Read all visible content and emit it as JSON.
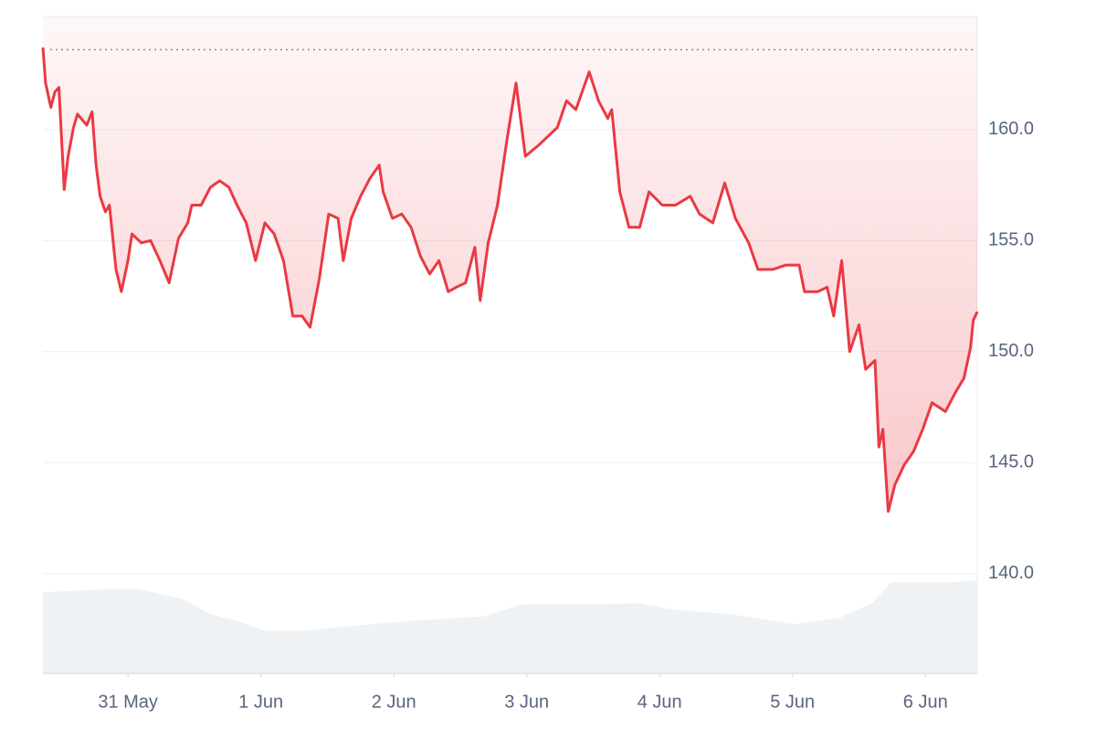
{
  "chart_data": {
    "type": "line",
    "x": [
      30.36,
      30.38,
      30.42,
      30.45,
      30.48,
      30.52,
      30.55,
      30.59,
      30.62,
      30.69,
      30.73,
      30.76,
      30.79,
      30.83,
      30.86,
      30.91,
      30.95,
      31.0,
      31.03,
      31.1,
      31.17,
      31.24,
      31.31,
      31.38,
      31.45,
      31.48,
      31.55,
      31.62,
      31.69,
      31.76,
      31.82,
      31.89,
      31.96,
      32.03,
      32.1,
      32.17,
      32.24,
      32.31,
      32.37,
      32.44,
      32.51,
      32.58,
      32.62,
      32.68,
      32.75,
      32.82,
      32.89,
      32.92,
      32.99,
      33.06,
      33.13,
      33.2,
      33.27,
      33.34,
      33.41,
      33.47,
      33.54,
      33.61,
      33.65,
      33.71,
      33.78,
      33.85,
      33.92,
      33.99,
      34.09,
      34.16,
      34.23,
      34.3,
      34.37,
      34.47,
      34.54,
      34.61,
      34.64,
      34.7,
      34.77,
      34.85,
      34.92,
      35.02,
      35.12,
      35.23,
      35.3,
      35.4,
      35.49,
      35.57,
      35.67,
      35.74,
      35.85,
      35.95,
      36.05,
      36.09,
      36.19,
      36.26,
      36.31,
      36.37,
      36.43,
      36.5,
      36.55,
      36.62,
      36.65,
      36.68,
      36.72,
      36.77,
      36.84,
      36.91,
      36.98,
      37.05,
      37.15,
      37.22,
      37.29,
      37.34,
      37.36,
      37.39
    ],
    "series": [
      {
        "color": "#ea3943",
        "values": [
          163.7,
          162.1,
          161.0,
          161.7,
          161.9,
          157.3,
          158.8,
          160.1,
          160.7,
          160.2,
          160.8,
          158.4,
          157.0,
          156.3,
          156.6,
          153.7,
          152.7,
          154.1,
          155.3,
          154.9,
          155.0,
          154.1,
          153.1,
          155.1,
          155.8,
          156.6,
          156.6,
          157.4,
          157.7,
          157.4,
          156.6,
          155.8,
          154.1,
          155.8,
          155.3,
          154.1,
          151.6,
          151.6,
          151.1,
          153.3,
          156.2,
          156.0,
          154.1,
          156.0,
          157.0,
          157.8,
          158.4,
          157.2,
          156.0,
          156.2,
          155.6,
          154.3,
          153.5,
          154.1,
          152.7,
          152.9,
          153.1,
          154.7,
          152.3,
          154.9,
          156.6,
          159.5,
          162.1,
          158.8,
          159.3,
          159.7,
          160.1,
          161.3,
          160.9,
          162.6,
          161.3,
          160.5,
          160.9,
          157.2,
          155.6,
          155.6,
          157.2,
          156.6,
          156.6,
          157.0,
          156.2,
          155.8,
          157.6,
          156.0,
          154.9,
          153.7,
          153.7,
          153.9,
          153.9,
          152.7,
          152.7,
          152.9,
          151.6,
          154.1,
          150.0,
          151.2,
          149.2,
          149.6,
          145.7,
          146.5,
          142.8,
          144.0,
          144.9,
          145.5,
          146.5,
          147.7,
          147.3,
          148.1,
          148.8,
          150.2,
          151.4,
          151.8
        ]
      }
    ],
    "reference_line": 163.6,
    "volume": {
      "color": "#eff2f5",
      "x": [
        30.36,
        30.86,
        31.07,
        31.41,
        31.62,
        31.82,
        32.03,
        32.31,
        32.65,
        33.13,
        33.68,
        33.96,
        34.51,
        34.85,
        35.12,
        35.54,
        36.02,
        36.36,
        36.6,
        36.74,
        37.19,
        37.39
      ],
      "values": [
        74,
        77,
        77,
        68,
        54,
        48,
        39,
        39,
        43,
        48,
        52,
        63,
        63,
        64,
        58,
        54,
        45,
        51,
        64,
        83,
        83,
        85
      ],
      "lim": [
        0,
        100
      ]
    },
    "xlim": [
      30.36,
      37.39
    ],
    "xticks": [
      {
        "value": 31,
        "label": "31 May"
      },
      {
        "value": 32,
        "label": "1 Jun"
      },
      {
        "value": 33,
        "label": "2 Jun"
      },
      {
        "value": 34,
        "label": "3 Jun"
      },
      {
        "value": 35,
        "label": "4 Jun"
      },
      {
        "value": 36,
        "label": "5 Jun"
      },
      {
        "value": 37,
        "label": "6 Jun"
      }
    ],
    "ylim": [
      135.5,
      165.1
    ],
    "yticks": [
      {
        "value": 140,
        "label": "140.0"
      },
      {
        "value": 145,
        "label": "145.0"
      },
      {
        "value": 150,
        "label": "150.0"
      },
      {
        "value": 155,
        "label": "155.0"
      },
      {
        "value": 160,
        "label": "160.0"
      }
    ],
    "grid": true
  }
}
